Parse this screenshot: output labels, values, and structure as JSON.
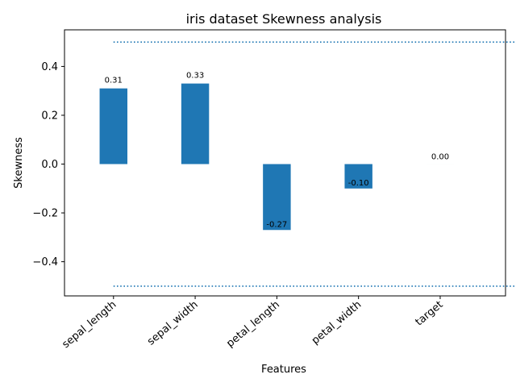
{
  "chart_data": {
    "type": "bar",
    "title": "iris dataset Skewness analysis",
    "xlabel": "Features",
    "ylabel": "Skewness",
    "categories": [
      "sepal_length",
      "sepal_width",
      "petal_length",
      "petal_width",
      "target"
    ],
    "values": [
      0.31,
      0.33,
      -0.27,
      -0.1,
      0.0
    ],
    "value_labels": [
      "0.31",
      "0.33",
      "-0.27",
      "-0.10",
      "0.00"
    ],
    "ylim": [
      -0.54,
      0.55
    ],
    "yticks": [
      -0.4,
      -0.2,
      0.0,
      0.2,
      0.4
    ],
    "ytick_labels": [
      "−0.4",
      "−0.2",
      "0.0",
      "0.2",
      "0.4"
    ],
    "reference_lines": [
      0.5,
      -0.5
    ],
    "grid": false,
    "legend": "none",
    "colors": {
      "bar": "#1f77b4",
      "reference_line": "#1f77b4"
    }
  }
}
